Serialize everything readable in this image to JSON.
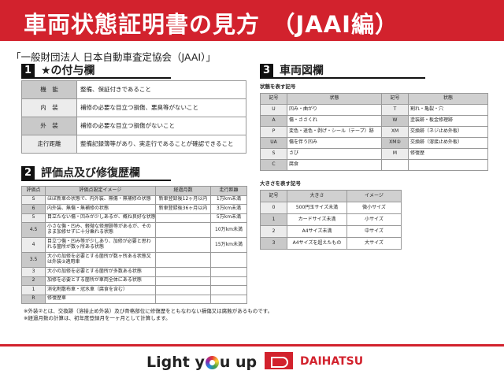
{
  "header": {
    "title": "車両状態証明書の見方　（JAAI編）"
  },
  "subtitle": "「一般財団法人 日本自動車査定協会（JAAI）」",
  "section1": {
    "num": "1",
    "title": "★の付与欄",
    "rows": [
      {
        "label": "機　能",
        "text": "整備、保証付きであること"
      },
      {
        "label": "内　装",
        "text": "補修の必要な目立つ損傷、悪臭等がないこと"
      },
      {
        "label": "外　装",
        "text": "補修の必要な目立つ損傷がないこと"
      },
      {
        "label": "走行距離",
        "text": "整備記録簿等があり、実走行であることが確認できること"
      }
    ]
  },
  "section2": {
    "num": "2",
    "title": "評価点及び修復歴欄",
    "headers": [
      "評価点",
      "評価点設定イメージ",
      "経過月数",
      "走行距離"
    ],
    "rows": [
      [
        "S",
        "ほぼ新車の状態で、内外装、無傷・無補修の状態",
        "新車登録後12ヶ月以内",
        "1万km未満"
      ],
      [
        "6",
        "内外装、無傷・無補修の状態",
        "新車登録後36ヶ月以内",
        "3万km未満"
      ],
      [
        "5",
        "目立たない傷・凹みが少しあるが、概ね良好な状態",
        "",
        "5万km未満"
      ],
      [
        "4.5",
        "小さな傷・凹み、軽微な修理跡等があるが、そのまま加修せずに十分乗れる状態",
        "",
        "10万km未満"
      ],
      [
        "4",
        "目立つ傷・凹み等が少しあり、加修が必要と思われる箇所が数ヶ所ある状態",
        "",
        "15万km未満"
      ],
      [
        "3.5",
        "大小の加修を必要とする箇所が数ヶ所ある状態又は外装②適用車",
        "",
        ""
      ],
      [
        "3",
        "大小の加修を必要とする箇所が多数ある状態",
        "",
        ""
      ],
      [
        "2",
        "加修を必要とする箇所が車両全体にある状態",
        "",
        ""
      ],
      [
        "1",
        "消化剤散布車・冠水車（腐食を含む）",
        "",
        ""
      ],
      [
        "R",
        "修復歴車",
        "",
        ""
      ]
    ],
    "notes": [
      "※外装②とは、交換跡（溶接止め外装）及び骨格部位に修復歴をともなわない損傷又は腐蝕があるものです。",
      "※経過月数の計算は、初年度登録月を一ヶ月として計算します。"
    ]
  },
  "section3": {
    "num": "3",
    "title": "車両図欄",
    "state_caption": "状態を表す記号",
    "state_headers": [
      "記号",
      "状態",
      "記号",
      "状態"
    ],
    "state_rows": [
      [
        "U",
        "凹み・曲がり",
        "T",
        "割れ・亀裂・穴"
      ],
      [
        "A",
        "傷・ささくれ",
        "W",
        "塗装跡・板金修理跡"
      ],
      [
        "P",
        "変色・退色・剥げ・シール（テープ）跡",
        "XM",
        "交換跡（ネジ止め外板）"
      ],
      [
        "UA",
        "傷を伴う凹み",
        "XM②",
        "交換跡（溶接止め外板）"
      ],
      [
        "S",
        "さび",
        "M",
        "修復歴"
      ],
      [
        "C",
        "腐食",
        "",
        ""
      ]
    ],
    "size_caption": "大きさを表す記号",
    "size_headers": [
      "記号",
      "大きさ",
      "イメージ"
    ],
    "size_rows": [
      [
        "0",
        "500円玉サイズ未満",
        "微小サイズ"
      ],
      [
        "1",
        "カードサイズ未満",
        "小サイズ"
      ],
      [
        "2",
        "A4サイズ未満",
        "中サイズ"
      ],
      [
        "3",
        "A4サイズを超えたもの",
        "大サイズ"
      ]
    ]
  },
  "footer": {
    "slogan_a": "Light y",
    "slogan_b": "u up",
    "brand": "DAIHATSU"
  },
  "colors": {
    "brand_red": "#d2222d"
  }
}
